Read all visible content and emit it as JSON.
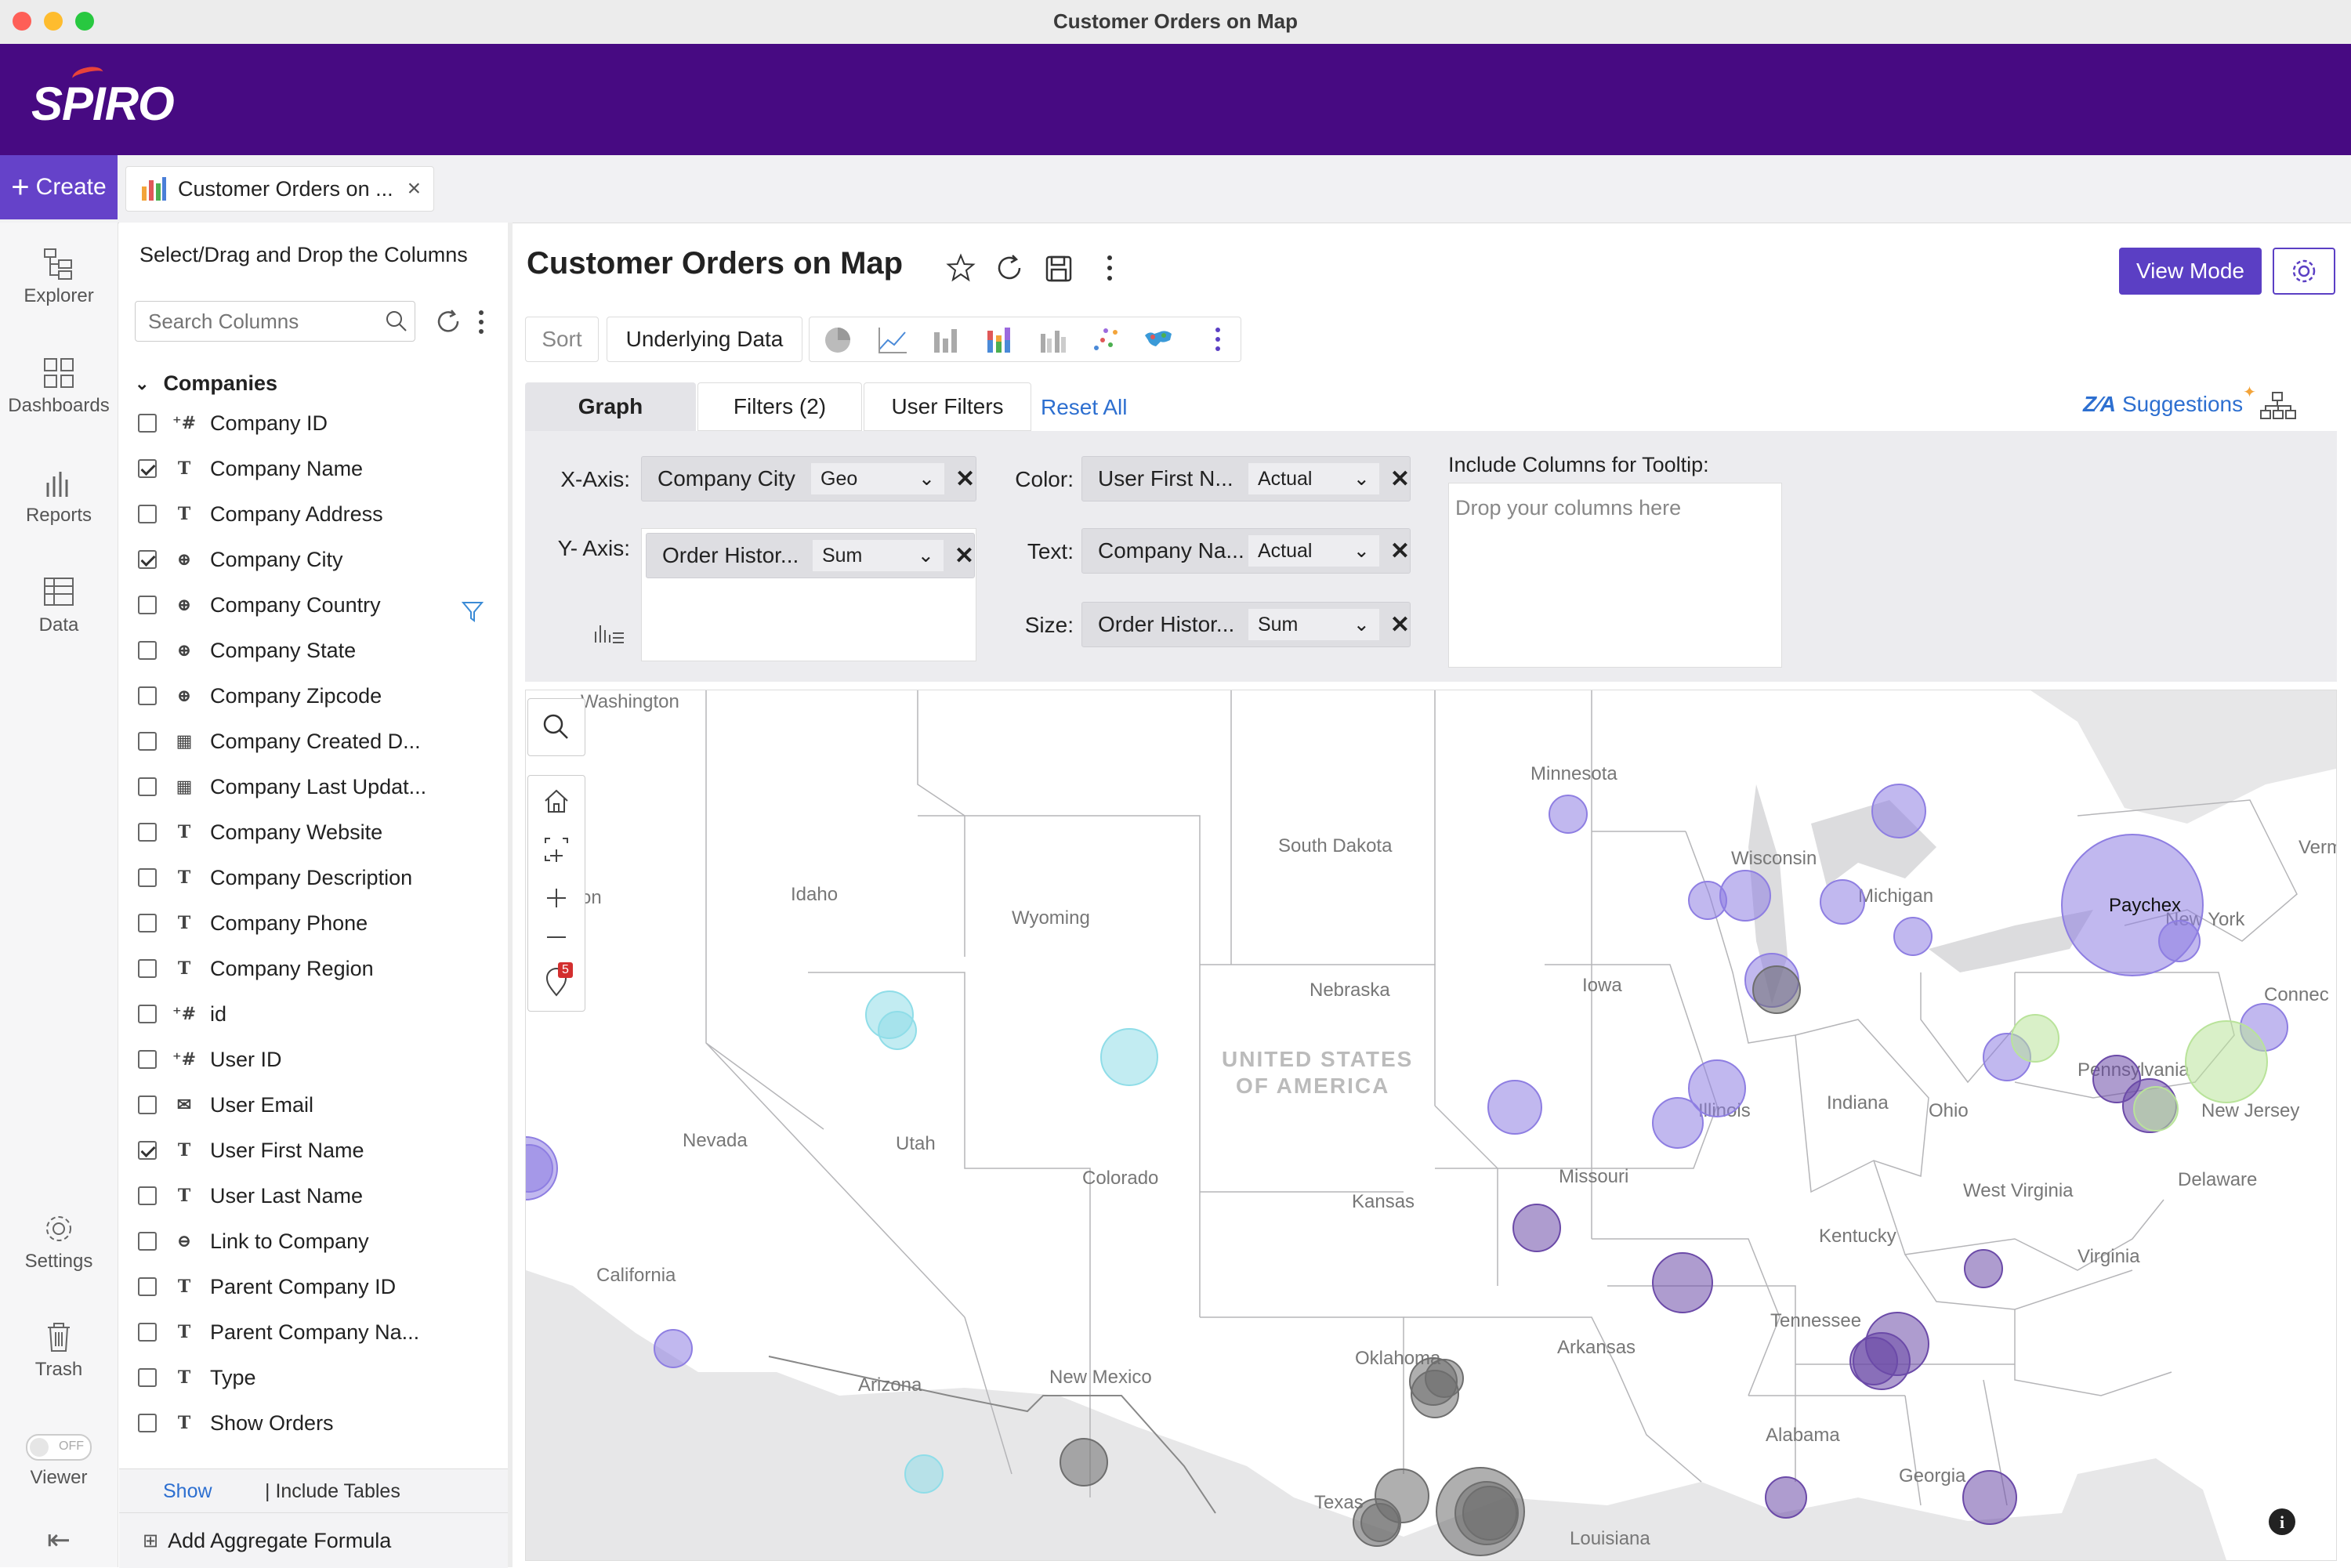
{
  "window": {
    "title": "Customer Orders on Map"
  },
  "brand": {
    "logo": "SPIRO"
  },
  "tabs": {
    "create_label": "Create",
    "doc_tab_label": "Customer Orders on ..."
  },
  "rail": {
    "items": [
      {
        "label": "Explorer",
        "icon": "explorer-icon"
      },
      {
        "label": "Dashboards",
        "icon": "dashboards-icon"
      },
      {
        "label": "Reports",
        "icon": "reports-icon"
      },
      {
        "label": "Data",
        "icon": "data-icon"
      },
      {
        "label": "Settings",
        "icon": "gear-icon"
      },
      {
        "label": "Trash",
        "icon": "trash-icon"
      }
    ],
    "viewer_label": "Viewer",
    "viewer_toggle": "OFF"
  },
  "columns_panel": {
    "heading": "Select/Drag and Drop the Columns",
    "search_placeholder": "Search Columns",
    "group": "Companies",
    "items": [
      {
        "label": "Company ID",
        "type": "+#",
        "checked": false
      },
      {
        "label": "Company Name",
        "type": "T",
        "checked": true
      },
      {
        "label": "Company Address",
        "type": "T",
        "checked": false
      },
      {
        "label": "Company City",
        "type": "globe",
        "checked": true
      },
      {
        "label": "Company Country",
        "type": "globe",
        "checked": false
      },
      {
        "label": "Company State",
        "type": "globe",
        "checked": false
      },
      {
        "label": "Company Zipcode",
        "type": "globe",
        "checked": false
      },
      {
        "label": "Company Created D...",
        "type": "date",
        "checked": false
      },
      {
        "label": "Company Last Updat...",
        "type": "date",
        "checked": false
      },
      {
        "label": "Company Website",
        "type": "T",
        "checked": false
      },
      {
        "label": "Company Description",
        "type": "T",
        "checked": false
      },
      {
        "label": "Company Phone",
        "type": "T",
        "checked": false
      },
      {
        "label": "Company Region",
        "type": "T",
        "checked": false
      },
      {
        "label": "id",
        "type": "+#",
        "checked": false
      },
      {
        "label": "User ID",
        "type": "+#",
        "checked": false
      },
      {
        "label": "User Email",
        "type": "mail",
        "checked": false
      },
      {
        "label": "User First Name",
        "type": "T",
        "checked": true
      },
      {
        "label": "User Last Name",
        "type": "T",
        "checked": false
      },
      {
        "label": "Link to Company",
        "type": "link",
        "checked": false
      },
      {
        "label": "Parent Company ID",
        "type": "T",
        "checked": false
      },
      {
        "label": "Parent Company Na...",
        "type": "T",
        "checked": false
      },
      {
        "label": "Type",
        "type": "T",
        "checked": false
      },
      {
        "label": "Show Orders",
        "type": "T",
        "checked": false
      }
    ],
    "show_label": "Show",
    "include_tables_label": "| Include Tables",
    "aggregate_label": "Add Aggregate Formula"
  },
  "report": {
    "title": "Customer Orders on Map",
    "view_mode_label": "View Mode",
    "sort_label": "Sort",
    "underlying_label": "Underlying Data",
    "tabs": {
      "graph": "Graph",
      "filters": "Filters  (2)",
      "user_filters": "User Filters",
      "reset": "Reset All"
    },
    "suggestions_label": "Suggestions",
    "accent": "#5b3fc4"
  },
  "config": {
    "x_label": "X-Axis:",
    "x_col": "Company City",
    "x_agg": "Geo",
    "y_label": "Y- Axis:",
    "y_col": "Order Histor...",
    "y_agg": "Sum",
    "color_label": "Color:",
    "color_col": "User First N...",
    "color_agg": "Actual",
    "text_label": "Text:",
    "text_col": "Company Na...",
    "text_agg": "Actual",
    "size_label": "Size:",
    "size_col": "Order Histor...",
    "size_agg": "Sum",
    "tooltip_label": "Include Columns for Tooltip:",
    "tooltip_placeholder": "Drop your columns here"
  },
  "map": {
    "badge_count": "5",
    "country_label": "UNITED STATES OF AMERICA",
    "region_labels": [
      "Washington",
      "Minnesota",
      "South Dakota",
      "Wisconsin",
      "Michigan",
      "Idaho",
      "Wyoming",
      "Nebraska",
      "Iowa",
      "Pennsylvania",
      "Illinois",
      "Indiana",
      "Ohio",
      "Nevada",
      "Utah",
      "Colorado",
      "Kansas",
      "Missouri",
      "New Jersey",
      "Delaware",
      "West Virginia",
      "Kentucky",
      "Virginia",
      "California",
      "Tennessee",
      "Oklahoma",
      "Arkansas",
      "Arizona",
      "New Mexico",
      "Alabama",
      "Georgia",
      "Texas",
      "Louisiana",
      "New York",
      "Connec",
      "Verm",
      "on"
    ],
    "bubble_label": "Paychex",
    "colors": {
      "purple": "#8e7ee2",
      "dark": "#6b4aa8",
      "gray": "#6e6e6e",
      "cyan": "#8fdde8",
      "green": "#b9e39a"
    }
  }
}
